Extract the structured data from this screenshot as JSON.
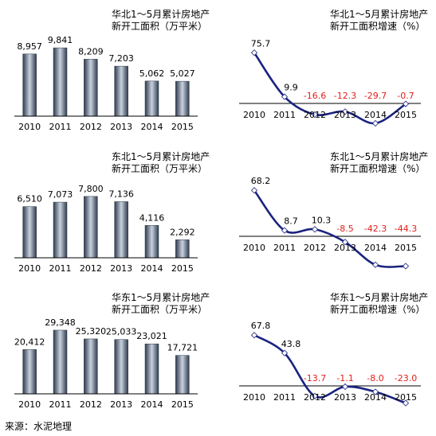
{
  "source_label": "来源：水泥地理",
  "colors": {
    "bar_dark": "#2e3a4c",
    "bar_light": "#c9d2de",
    "line": "#1a237e",
    "negative_label": "#e0201b",
    "text": "#000000",
    "axis": "#000000"
  },
  "chart_data": [
    {
      "type": "bar",
      "title_lines": [
        "华北1～5月累计房地产",
        "新开工面积（万平米）"
      ],
      "categories": [
        "2010",
        "2011",
        "2012",
        "2013",
        "2014",
        "2015"
      ],
      "values": [
        8957,
        9841,
        8209,
        7203,
        5062,
        5027
      ],
      "labels": [
        "8,957",
        "9,841",
        "8,209",
        "7,203",
        "5,062",
        "5,027"
      ],
      "ylim": [
        0,
        11000
      ]
    },
    {
      "type": "line",
      "title_lines": [
        "华北1～5月累计房地产",
        "新开工面积增速（%）"
      ],
      "categories": [
        "2010",
        "2011",
        "2012",
        "2013",
        "2014",
        "2015"
      ],
      "values": [
        75.7,
        9.9,
        -16.6,
        -12.3,
        -29.7,
        -0.7
      ],
      "labels": [
        "75.7",
        "9.9",
        "-16.6",
        "-12.3",
        "-29.7",
        "-0.7"
      ],
      "ylim": [
        -45,
        95
      ]
    },
    {
      "type": "bar",
      "title_lines": [
        "东北1～5月累计房地产",
        "新开工面积（万平米）"
      ],
      "categories": [
        "2010",
        "2011",
        "2012",
        "2013",
        "2014",
        "2015"
      ],
      "values": [
        6510,
        7073,
        7800,
        7136,
        4116,
        2292
      ],
      "labels": [
        "6,510",
        "7,073",
        "7,800",
        "7,136",
        "4,116",
        "2,292"
      ],
      "ylim": [
        0,
        9000
      ]
    },
    {
      "type": "line",
      "title_lines": [
        "东北1～5月累计房地产",
        "新开工面积增速（%）"
      ],
      "categories": [
        "2010",
        "2011",
        "2012",
        "2013",
        "2014",
        "2015"
      ],
      "values": [
        68.2,
        8.7,
        10.3,
        -8.5,
        -42.3,
        -44.3
      ],
      "labels": [
        "68.2",
        "8.7",
        "10.3",
        "-8.5",
        "-42.3",
        "-44.3"
      ],
      "ylim": [
        -60,
        85
      ]
    },
    {
      "type": "bar",
      "title_lines": [
        "华东1～5月累计房地产",
        "新开工面积（万平米）"
      ],
      "categories": [
        "2010",
        "2011",
        "2012",
        "2013",
        "2014",
        "2015"
      ],
      "values": [
        20412,
        29348,
        25320,
        25033,
        23021,
        17721
      ],
      "labels": [
        "20,412",
        "29,348",
        "25,320",
        "25,033",
        "23,021",
        "17,721"
      ],
      "ylim": [
        0,
        33000
      ]
    },
    {
      "type": "line",
      "title_lines": [
        "华东1～5月累计房地产",
        "新开工面积增速（%）"
      ],
      "categories": [
        "2010",
        "2011",
        "2012",
        "2013",
        "2014",
        "2015"
      ],
      "values": [
        67.8,
        43.8,
        -13.7,
        -1.1,
        -8.0,
        -23.0
      ],
      "labels": [
        "67.8",
        "43.8",
        "-13.7",
        "-1.1",
        "-8.0",
        "-23.0"
      ],
      "ylim": [
        -40,
        85
      ]
    }
  ]
}
